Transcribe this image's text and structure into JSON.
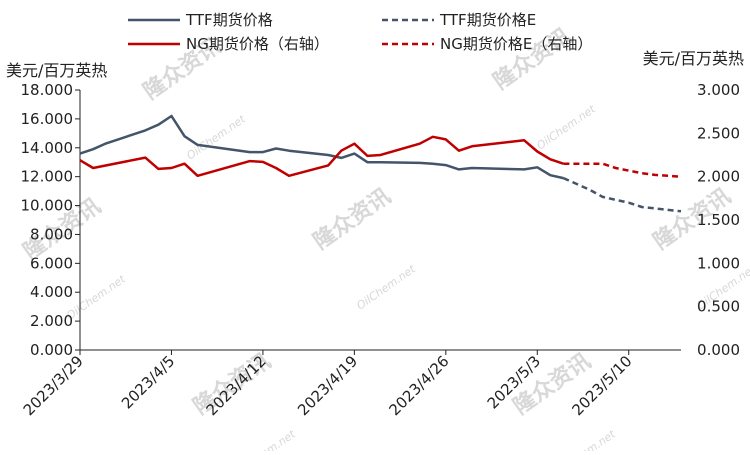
{
  "chart_data": {
    "type": "line",
    "y_unit_left": "美元/百万英热",
    "y_unit_right": "美元/百万英热",
    "y_left_range": [
      0,
      18
    ],
    "y_left_ticks": [
      "0.000",
      "2.000",
      "4.000",
      "6.000",
      "8.000",
      "10.000",
      "12.000",
      "14.000",
      "16.000",
      "18.000"
    ],
    "y_right_range": [
      0,
      3
    ],
    "y_right_ticks": [
      "0.000",
      "0.500",
      "1.000",
      "1.500",
      "2.000",
      "2.500",
      "3.000"
    ],
    "x_range": [
      "2023/3/29",
      "2023/5/14"
    ],
    "x_tick_labels": [
      "2023/3/29",
      "2023/4/5",
      "2023/4/12",
      "2023/4/19",
      "2023/4/26",
      "2023/5/3",
      "2023/5/10"
    ],
    "legend_position": "top",
    "grid": false,
    "series": [
      {
        "name": "TTF期货价格",
        "axis": "left",
        "style": "solid",
        "color": "#44546a",
        "points": [
          [
            "2023/3/29",
            13.6
          ],
          [
            "2023/3/30",
            13.9
          ],
          [
            "2023/3/31",
            14.3
          ],
          [
            "2023/4/3",
            15.2
          ],
          [
            "2023/4/4",
            15.6
          ],
          [
            "2023/4/5",
            16.2
          ],
          [
            "2023/4/6",
            14.8
          ],
          [
            "2023/4/7",
            14.2
          ],
          [
            "2023/4/11",
            13.7
          ],
          [
            "2023/4/12",
            13.7
          ],
          [
            "2023/4/13",
            13.95
          ],
          [
            "2023/4/14",
            13.8
          ],
          [
            "2023/4/17",
            13.5
          ],
          [
            "2023/4/18",
            13.3
          ],
          [
            "2023/4/19",
            13.6
          ],
          [
            "2023/4/20",
            13.0
          ],
          [
            "2023/4/21",
            13.0
          ],
          [
            "2023/4/24",
            12.95
          ],
          [
            "2023/4/25",
            12.9
          ],
          [
            "2023/4/26",
            12.8
          ],
          [
            "2023/4/27",
            12.5
          ],
          [
            "2023/4/28",
            12.6
          ],
          [
            "2023/5/2",
            12.5
          ],
          [
            "2023/5/3",
            12.65
          ],
          [
            "2023/5/4",
            12.1
          ],
          [
            "2023/5/5",
            11.9
          ]
        ]
      },
      {
        "name": "TTF期货价格E",
        "axis": "left",
        "style": "dashed",
        "color": "#44546a",
        "points": [
          [
            "2023/5/5",
            11.9
          ],
          [
            "2023/5/6",
            11.5
          ],
          [
            "2023/5/7",
            11.1
          ],
          [
            "2023/5/8",
            10.6
          ],
          [
            "2023/5/9",
            10.4
          ],
          [
            "2023/5/10",
            10.2
          ],
          [
            "2023/5/11",
            9.9
          ],
          [
            "2023/5/12",
            9.8
          ],
          [
            "2023/5/13",
            9.7
          ],
          [
            "2023/5/14",
            9.6
          ]
        ]
      },
      {
        "name": "NG期货价格（右轴）",
        "axis": "right",
        "style": "solid",
        "color": "#c00000",
        "points": [
          [
            "2023/3/29",
            2.19
          ],
          [
            "2023/3/30",
            2.1
          ],
          [
            "2023/4/3",
            2.22
          ],
          [
            "2023/4/4",
            2.09
          ],
          [
            "2023/4/5",
            2.1
          ],
          [
            "2023/4/6",
            2.15
          ],
          [
            "2023/4/7",
            2.01
          ],
          [
            "2023/4/11",
            2.18
          ],
          [
            "2023/4/12",
            2.17
          ],
          [
            "2023/4/13",
            2.1
          ],
          [
            "2023/4/14",
            2.01
          ],
          [
            "2023/4/17",
            2.13
          ],
          [
            "2023/4/18",
            2.3
          ],
          [
            "2023/4/19",
            2.38
          ],
          [
            "2023/4/20",
            2.24
          ],
          [
            "2023/4/21",
            2.25
          ],
          [
            "2023/4/24",
            2.38
          ],
          [
            "2023/4/25",
            2.46
          ],
          [
            "2023/4/26",
            2.43
          ],
          [
            "2023/4/27",
            2.3
          ],
          [
            "2023/4/28",
            2.35
          ],
          [
            "2023/5/2",
            2.42
          ],
          [
            "2023/5/3",
            2.29
          ],
          [
            "2023/5/4",
            2.2
          ],
          [
            "2023/5/5",
            2.15
          ]
        ]
      },
      {
        "name": "NG期货价格E（右轴）",
        "axis": "right",
        "style": "dashed",
        "color": "#c00000",
        "points": [
          [
            "2023/5/5",
            2.15
          ],
          [
            "2023/5/8",
            2.15
          ],
          [
            "2023/5/9",
            2.1
          ],
          [
            "2023/5/10",
            2.07
          ],
          [
            "2023/5/11",
            2.04
          ],
          [
            "2023/5/12",
            2.02
          ],
          [
            "2023/5/13",
            2.01
          ],
          [
            "2023/5/14",
            2.0
          ]
        ]
      }
    ]
  },
  "watermark": {
    "brand": "隆众资讯",
    "site": "OilChem.net"
  }
}
